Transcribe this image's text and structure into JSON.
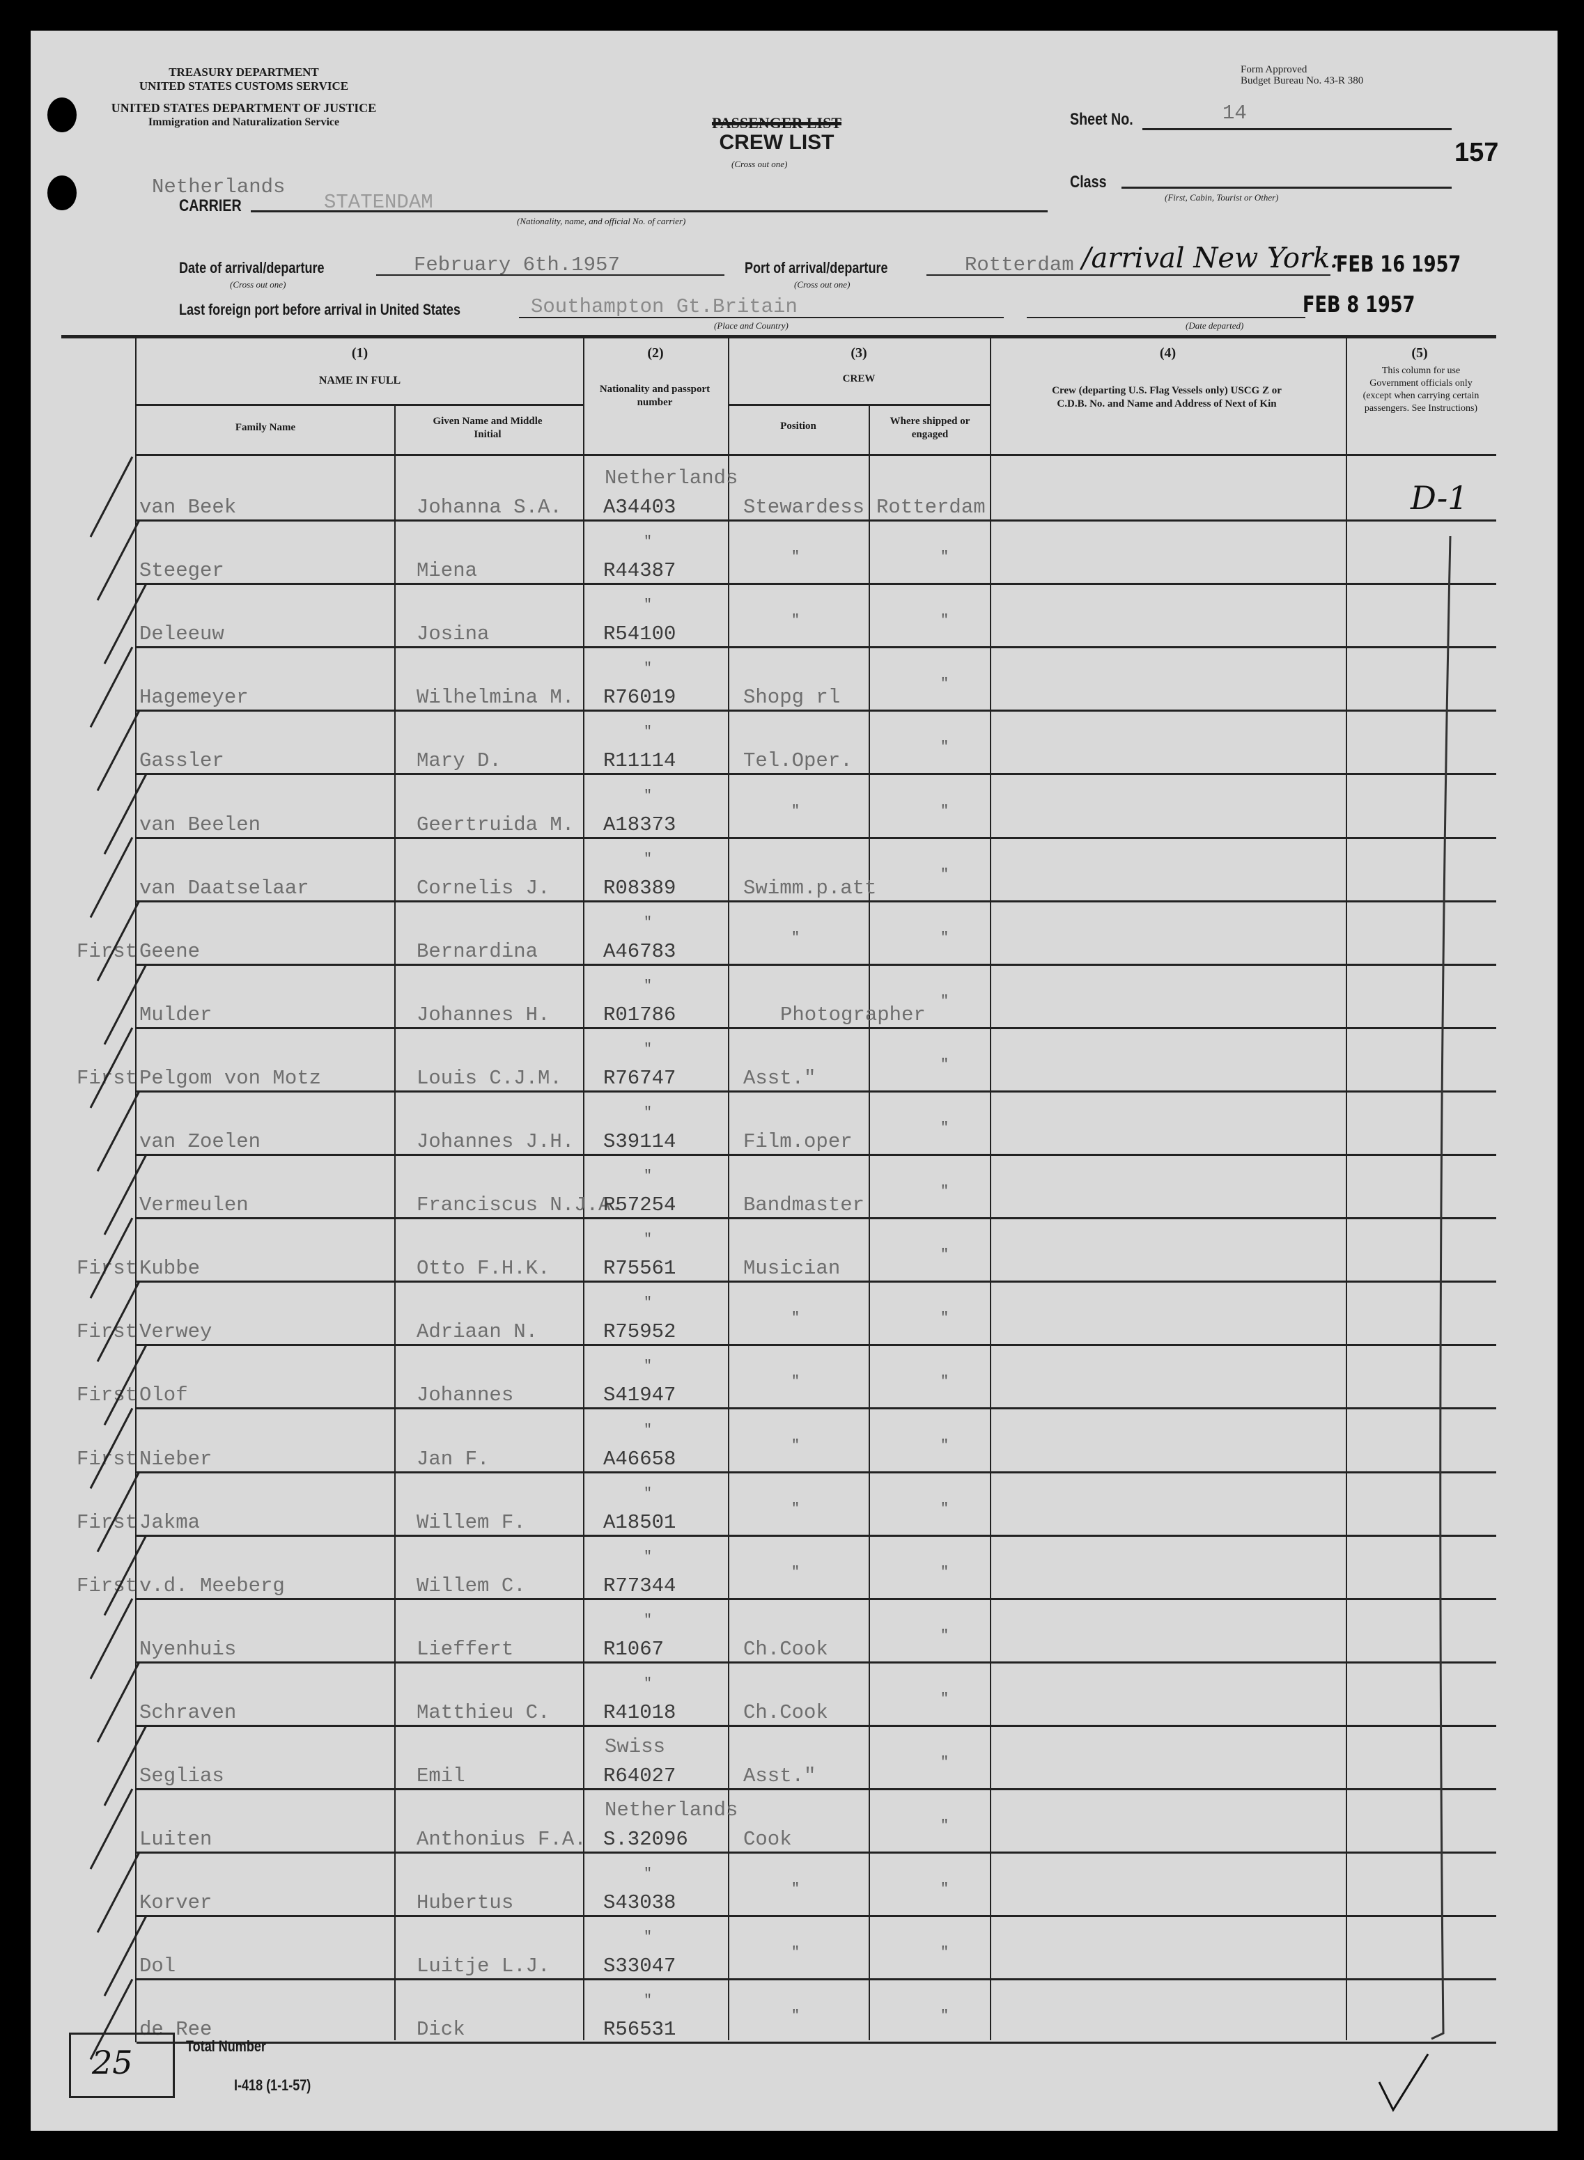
{
  "header": {
    "agency_lines": [
      "TREASURY DEPARTMENT",
      "UNITED STATES CUSTOMS SERVICE",
      "UNITED STATES DEPARTMENT OF JUSTICE",
      "Immigration and Naturalization Service"
    ],
    "form_approved": "Form Approved",
    "budget_bureau": "Budget Bureau No. 43-R 380",
    "struck_title": "PASSENGER LIST",
    "title": "CREW LIST",
    "cross_out_note": "(Cross out one)",
    "sheet_label": "Sheet No.",
    "sheet_value": "14",
    "page_number": "157",
    "class_label": "Class",
    "class_note": "(First, Cabin, Tourist or Other)",
    "nationality_value": "Netherlands",
    "carrier_label": "CARRIER",
    "carrier_value": "STATENDAM",
    "carrier_note": "(Nationality, name, and official No. of carrier)",
    "date_label": "Date of arrival/departure",
    "date_value": "February 6th.1957",
    "port_label": "Port of arrival/departure",
    "port_value": "Rotterdam",
    "port_handwritten": "/arrival New York:",
    "arrival_stamp": "FEB 16 1957",
    "last_port_label": "Last foreign port before arrival in United States",
    "last_port_value": "Southampton  Gt.Britain",
    "place_note": "(Place and Country)",
    "date_departed_stamp": "FEB 8 1957",
    "date_departed_note": "(Date departed)"
  },
  "columns": {
    "c1": "(1)",
    "c1_title": "NAME IN FULL",
    "family": "Family Name",
    "given": "Given Name and Middle Initial",
    "c2": "(2)",
    "c2_title": "Nationality and passport number",
    "c3": "(3)",
    "c3_title": "CREW",
    "position": "Position",
    "shipped": "Where shipped or engaged",
    "c4": "(4)",
    "c4_title": "Crew (departing U.S. Flag Vessels only) USCG Z or C.D.B. No. and Name and Address of Next of Kin",
    "c5": "(5)",
    "c5_title": "This column for use Government officials only (except when carrying certain passengers. See Instructions)"
  },
  "gov_annotation": "D-1",
  "rows": [
    {
      "note": "",
      "family": "van Beek",
      "given": "Johanna S.A.",
      "nationality": "Netherlands",
      "passport": "A34403",
      "position": "Stewardess",
      "shipped": "Rotterdam"
    },
    {
      "note": "",
      "family": "Steeger",
      "given": "Miena",
      "nationality": "\"",
      "passport": "R44387",
      "position": "\"",
      "shipped": "\""
    },
    {
      "note": "",
      "family": "Deleeuw",
      "given": "Josina",
      "nationality": "\"",
      "passport": "R54100",
      "position": "\"",
      "shipped": "\""
    },
    {
      "note": "",
      "family": "Hagemeyer",
      "given": "Wilhelmina M.",
      "nationality": "\"",
      "passport": "R76019",
      "position": "Shopg rl",
      "shipped": "\""
    },
    {
      "note": "",
      "family": "Gassler",
      "given": "Mary D.",
      "nationality": "\"",
      "passport": "R11114",
      "position": "Tel.Oper.",
      "shipped": "\""
    },
    {
      "note": "",
      "family": "van Beelen",
      "given": "Geertruida M.",
      "nationality": "\"",
      "passport": "A18373",
      "position": "\"",
      "shipped": "\""
    },
    {
      "note": "",
      "family": "van Daatselaar",
      "given": "Cornelis J.",
      "nationality": "\"",
      "passport": "R08389",
      "position": "Swimm.p.att",
      "shipped": "\""
    },
    {
      "note": "First",
      "family": "Geene",
      "given": "Bernardina",
      "nationality": "\"",
      "passport": "A46783",
      "position": "\"",
      "shipped": "\""
    },
    {
      "note": "",
      "family": "Mulder",
      "given": "Johannes H.",
      "nationality": "\"",
      "passport": "R01786",
      "position": "Photographer",
      "shipped": "\""
    },
    {
      "note": "First",
      "family": "Pelgom von Motz",
      "given": "Louis C.J.M.",
      "nationality": "\"",
      "passport": "R76747",
      "position": "Asst.\"",
      "shipped": "\""
    },
    {
      "note": "",
      "family": "van Zoelen",
      "given": "Johannes J.H.",
      "nationality": "\"",
      "passport": "S39114",
      "position": "Film.oper",
      "shipped": "\""
    },
    {
      "note": "",
      "family": "Vermeulen",
      "given": "Franciscus N.J.A.",
      "nationality": "\"",
      "passport": "R57254",
      "position": "Bandmaster",
      "shipped": "\""
    },
    {
      "note": "First",
      "family": "Kubbe",
      "given": "Otto F.H.K.",
      "nationality": "\"",
      "passport": "R75561",
      "position": "Musician",
      "shipped": "\""
    },
    {
      "note": "First",
      "family": "Verwey",
      "given": "Adriaan N.",
      "nationality": "\"",
      "passport": "R75952",
      "position": "\"",
      "shipped": "\""
    },
    {
      "note": "First",
      "family": "Olof",
      "given": "Johannes",
      "nationality": "\"",
      "passport": "S41947",
      "position": "\"",
      "shipped": "\""
    },
    {
      "note": "First",
      "family": "Nieber",
      "given": "Jan F.",
      "nationality": "\"",
      "passport": "A46658",
      "position": "\"",
      "shipped": "\""
    },
    {
      "note": "First",
      "family": "Jakma",
      "given": "Willem F.",
      "nationality": "\"",
      "passport": "A18501",
      "position": "\"",
      "shipped": "\""
    },
    {
      "note": "First",
      "family": "v.d. Meeberg",
      "given": "Willem C.",
      "nationality": "\"",
      "passport": "R77344",
      "position": "\"",
      "shipped": "\""
    },
    {
      "note": "",
      "family": "Nyenhuis",
      "given": "Lieffert",
      "nationality": "\"",
      "passport": "R1067",
      "position": "Ch.Cook",
      "shipped": "\""
    },
    {
      "note": "",
      "family": "Schraven",
      "given": "Matthieu C.",
      "nationality": "\"",
      "passport": "R41018",
      "position": "Ch.Cook",
      "shipped": "\""
    },
    {
      "note": "",
      "family": "Seglias",
      "given": "Emil",
      "nationality": "Swiss",
      "passport": "R64027",
      "position": "Asst.\"",
      "shipped": "\""
    },
    {
      "note": "",
      "family": "Luiten",
      "given": "Anthonius F.A.",
      "nationality": "Netherlands",
      "passport": "S.32096",
      "position": "Cook",
      "shipped": "\""
    },
    {
      "note": "",
      "family": "Korver",
      "given": "Hubertus",
      "nationality": "\"",
      "passport": "S43038",
      "position": "\"",
      "shipped": "\""
    },
    {
      "note": "",
      "family": "Dol",
      "given": "Luitje L.J.",
      "nationality": "\"",
      "passport": "S33047",
      "position": "\"",
      "shipped": "\""
    },
    {
      "note": "",
      "family": "de Ree",
      "given": "Dick",
      "nationality": "\"",
      "passport": "R56531",
      "position": "\"",
      "shipped": "\""
    }
  ],
  "footer": {
    "total_value": "25",
    "total_label": "Total Number",
    "form_number": "I-418 (1-1-57)"
  }
}
